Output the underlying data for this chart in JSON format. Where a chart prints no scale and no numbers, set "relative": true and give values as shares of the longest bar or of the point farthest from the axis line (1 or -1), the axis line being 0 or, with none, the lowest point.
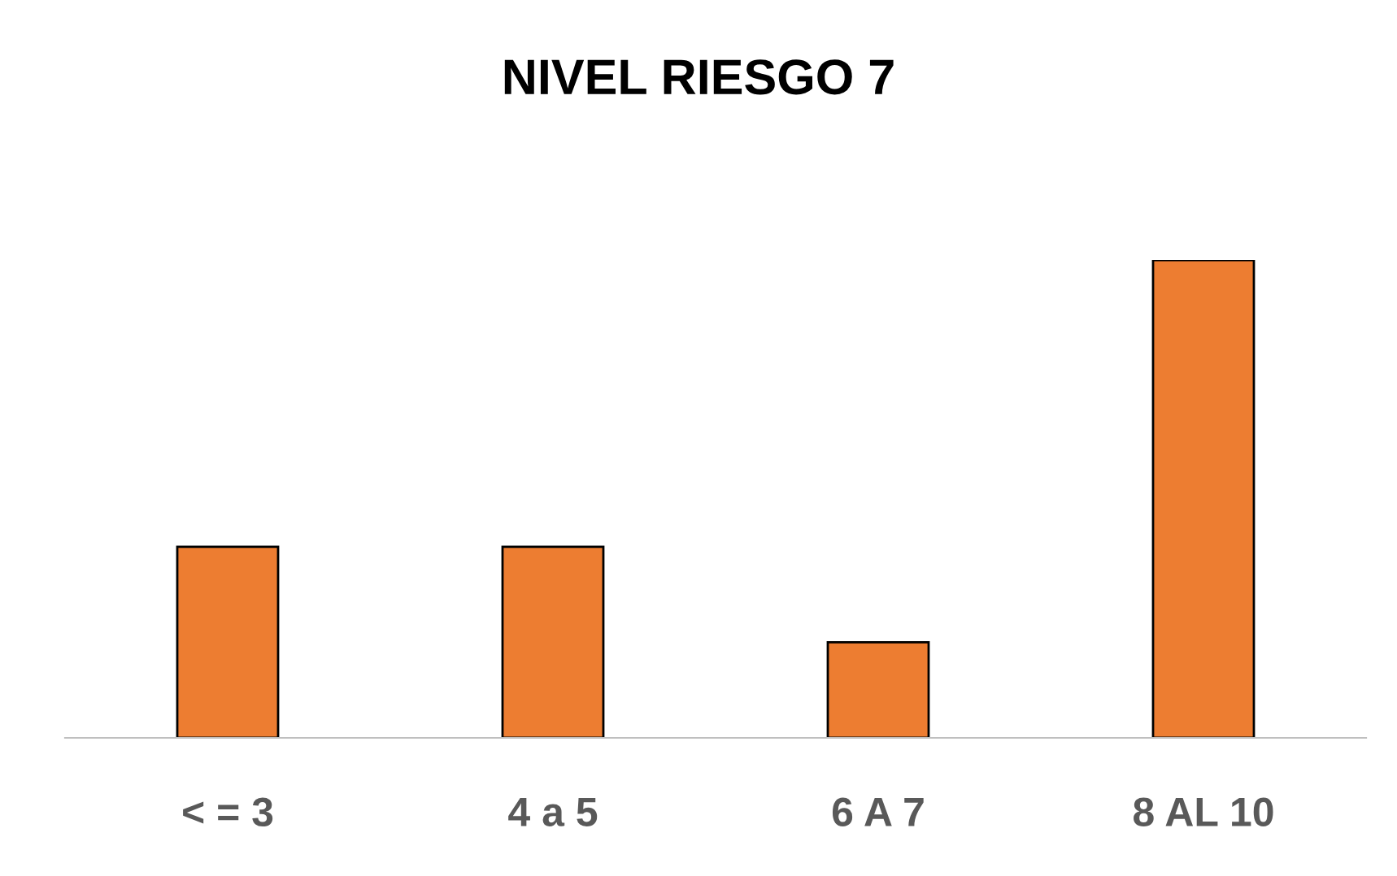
{
  "chart_data": {
    "type": "bar",
    "title": "NIVEL RIESGO 7",
    "categories": [
      "< = 3",
      "4 a 5",
      "6 A 7",
      "8 AL 10"
    ],
    "values": [
      0.4,
      0.4,
      0.2,
      1
    ],
    "color": "#ed7d31",
    "relative": true,
    "grid": false,
    "legend": false
  }
}
